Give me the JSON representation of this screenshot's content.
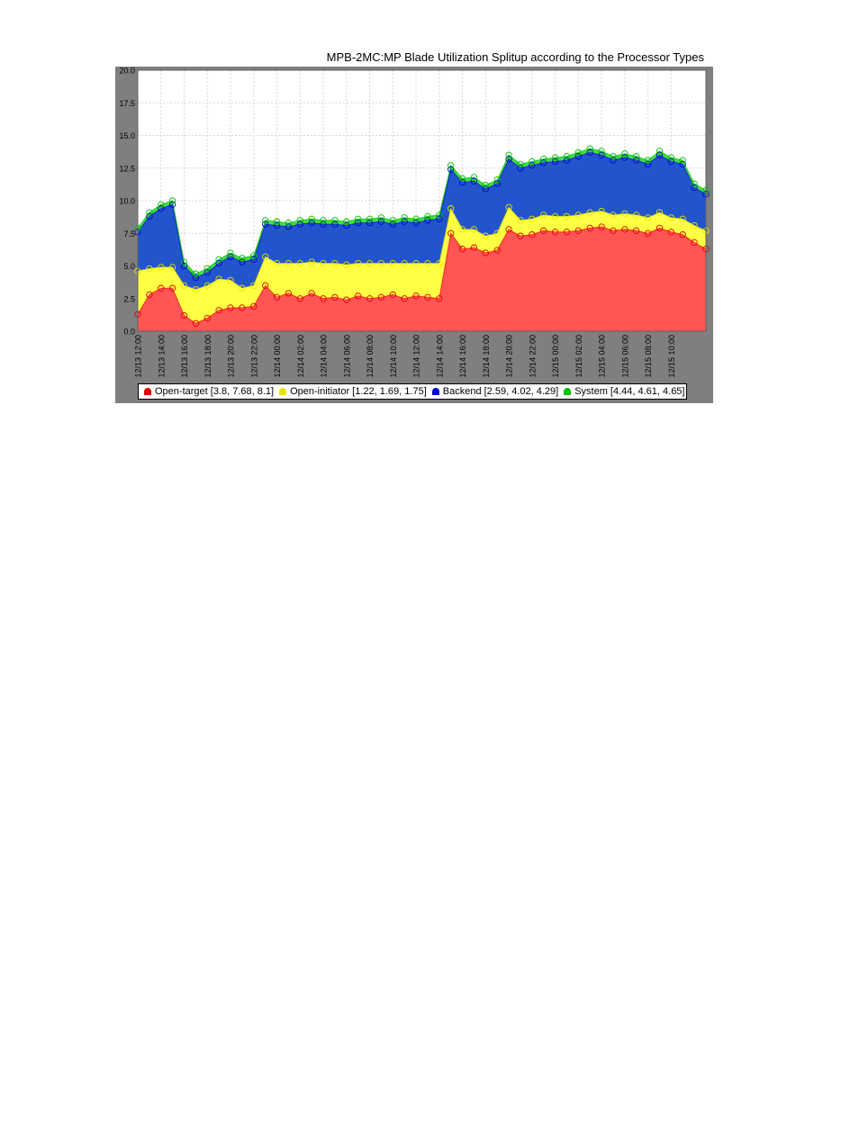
{
  "chart_data": {
    "type": "area",
    "title": "MPB-2MC:MP Blade Utilization Splitup according to the Processor Types",
    "xlabel": "",
    "ylabel": "",
    "stacked": true,
    "ylim": [
      0,
      20
    ],
    "yticks": [
      "0.0",
      "2.5",
      "5.0",
      "7.5",
      "10.0",
      "12.5",
      "15.0",
      "17.5",
      "20.0"
    ],
    "xticks": [
      "12/13 12:00",
      "12/13 14:00",
      "12/13 16:00",
      "12/13 18:00",
      "12/13 20:00",
      "12/13 22:00",
      "12/14 00:00",
      "12/14 02:00",
      "12/14 04:00",
      "12/14 06:00",
      "12/14 08:00",
      "12/14 10:00",
      "12/14 12:00",
      "12/14 14:00",
      "12/14 16:00",
      "12/14 18:00",
      "12/14 20:00",
      "12/14 22:00",
      "12/15 00:00",
      "12/15 02:00",
      "12/15 04:00",
      "12/15 06:00",
      "12/15 08:00",
      "12/15 10:00"
    ],
    "x_hours": [
      0,
      1,
      2,
      3,
      4,
      5,
      6,
      7,
      8,
      9,
      10,
      11,
      12,
      13,
      14,
      15,
      16,
      17,
      18,
      19,
      20,
      21,
      22,
      23,
      24,
      25,
      26,
      27,
      28,
      29,
      30,
      31,
      32,
      33,
      34,
      35,
      36,
      37,
      38,
      39,
      40,
      41,
      42,
      43,
      44,
      45,
      46,
      47,
      48,
      49
    ],
    "grid": true,
    "legend_position": "bottom",
    "series": [
      {
        "name": "Open-target [3.8, 7.68, 8.1]",
        "color": "#ff5555",
        "marker": "#e00000",
        "values": [
          1.3,
          2.8,
          3.3,
          3.3,
          1.2,
          0.6,
          1.0,
          1.6,
          1.8,
          1.8,
          1.9,
          3.5,
          2.6,
          2.9,
          2.5,
          2.9,
          2.5,
          2.6,
          2.4,
          2.7,
          2.5,
          2.6,
          2.8,
          2.5,
          2.7,
          2.6,
          2.5,
          7.5,
          6.3,
          6.4,
          6.0,
          6.2,
          7.8,
          7.3,
          7.4,
          7.7,
          7.6,
          7.6,
          7.7,
          7.9,
          8.0,
          7.7,
          7.8,
          7.7,
          7.5,
          7.9,
          7.6,
          7.4,
          6.8,
          6.3
        ]
      },
      {
        "name": "Open-initiator [1.22, 1.69, 1.75]",
        "color": "#ffff44",
        "marker": "#e6e600",
        "values": [
          3.3,
          2.0,
          1.6,
          1.6,
          2.3,
          2.6,
          2.5,
          2.4,
          2.1,
          1.5,
          1.6,
          2.2,
          2.6,
          2.3,
          2.7,
          2.4,
          2.7,
          2.6,
          2.7,
          2.5,
          2.7,
          2.6,
          2.4,
          2.7,
          2.5,
          2.6,
          2.7,
          1.9,
          1.5,
          1.4,
          1.3,
          1.3,
          1.7,
          1.2,
          1.2,
          1.2,
          1.2,
          1.2,
          1.2,
          1.2,
          1.2,
          1.2,
          1.2,
          1.2,
          1.2,
          1.2,
          1.1,
          1.2,
          1.3,
          1.4
        ]
      },
      {
        "name": "Backend [2.59, 4.02, 4.29]",
        "color": "#2255cc",
        "marker": "#0000d0",
        "values": [
          3.0,
          4.0,
          4.5,
          4.8,
          1.5,
          0.9,
          1.0,
          1.2,
          1.8,
          2.0,
          2.0,
          2.5,
          2.9,
          2.8,
          3.0,
          3.0,
          3.0,
          3.0,
          3.0,
          3.1,
          3.1,
          3.2,
          3.0,
          3.2,
          3.1,
          3.3,
          3.4,
          3.0,
          3.6,
          3.7,
          3.6,
          3.8,
          3.7,
          4.0,
          4.1,
          4.0,
          4.2,
          4.3,
          4.5,
          4.6,
          4.3,
          4.2,
          4.3,
          4.2,
          4.1,
          4.4,
          4.3,
          4.2,
          2.9,
          2.8
        ]
      },
      {
        "name": "System [4.44, 4.61, 4.65]",
        "color": "#44dd44",
        "marker": "#00c000",
        "values": [
          0.3,
          0.3,
          0.3,
          0.3,
          0.3,
          0.3,
          0.3,
          0.3,
          0.3,
          0.3,
          0.3,
          0.3,
          0.3,
          0.3,
          0.3,
          0.3,
          0.3,
          0.3,
          0.3,
          0.3,
          0.3,
          0.3,
          0.3,
          0.3,
          0.3,
          0.3,
          0.3,
          0.3,
          0.3,
          0.3,
          0.3,
          0.3,
          0.3,
          0.3,
          0.3,
          0.3,
          0.3,
          0.3,
          0.3,
          0.3,
          0.3,
          0.3,
          0.3,
          0.3,
          0.3,
          0.3,
          0.3,
          0.3,
          0.3,
          0.3
        ]
      }
    ]
  }
}
